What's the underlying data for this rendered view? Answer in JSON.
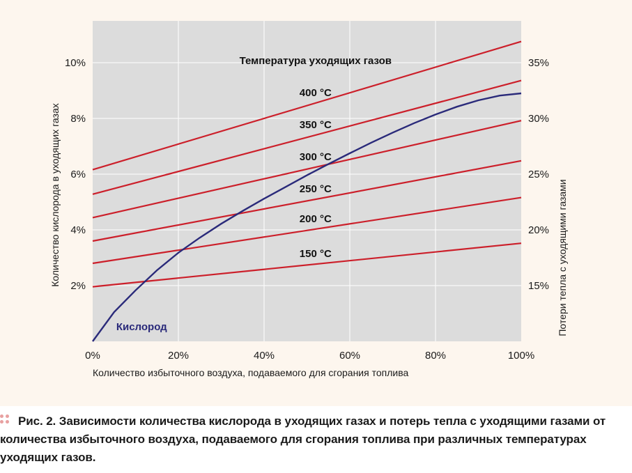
{
  "colors": {
    "plot_bg": "#dcdcdc",
    "grid": "#ffffff",
    "temperature_lines": "#cc1f2a",
    "oxygen_line": "#2a2a7a",
    "figure_bg": "#fdf6ee",
    "caption_dots": "#e8a0a0"
  },
  "chart_data": {
    "type": "line",
    "legend_title": "Температура уходящих газов",
    "xlabel": "Количество избыточного воздуха, подаваемого для сгорания топлива",
    "ylabel_left": "Количество кислорода в уходящих газах",
    "ylabel_right": "Потери тепла с уходящими газами",
    "xlim": [
      0,
      100
    ],
    "ylim_left": [
      0,
      11.5
    ],
    "ylim_right": [
      10,
      38.75
    ],
    "x_ticks": [
      "0%",
      "20%",
      "40%",
      "60%",
      "80%",
      "100%"
    ],
    "y_left_ticks": [
      "2%",
      "4%",
      "6%",
      "8%",
      "10%"
    ],
    "y_right_ticks": [
      "15%",
      "20%",
      "25%",
      "30%",
      "35%"
    ],
    "grid": true,
    "temperature_series": [
      {
        "name": "150 °C",
        "axis": "right",
        "x": [
          0,
          100
        ],
        "values": [
          14.9,
          18.8
        ]
      },
      {
        "name": "200 °C",
        "axis": "right",
        "x": [
          0,
          100
        ],
        "values": [
          17.0,
          22.9
        ]
      },
      {
        "name": "250 °C",
        "axis": "right",
        "x": [
          0,
          100
        ],
        "values": [
          19.0,
          26.2
        ]
      },
      {
        "name": "300 °C",
        "axis": "right",
        "x": [
          0,
          100
        ],
        "values": [
          21.1,
          29.8
        ]
      },
      {
        "name": "350 °C",
        "axis": "right",
        "x": [
          0,
          100
        ],
        "values": [
          23.2,
          33.4
        ]
      },
      {
        "name": "400 °C",
        "axis": "right",
        "x": [
          0,
          100
        ],
        "values": [
          25.4,
          36.9
        ]
      }
    ],
    "oxygen_series": {
      "name": "Кислород",
      "axis": "left",
      "x": [
        0,
        5,
        10,
        15,
        20,
        25,
        30,
        35,
        40,
        45,
        50,
        55,
        60,
        65,
        70,
        75,
        80,
        85,
        90,
        95,
        100
      ],
      "values": [
        0,
        1.05,
        1.83,
        2.55,
        3.18,
        3.72,
        4.22,
        4.68,
        5.12,
        5.54,
        5.96,
        6.36,
        6.75,
        7.13,
        7.49,
        7.83,
        8.14,
        8.42,
        8.65,
        8.82,
        8.9
      ]
    }
  },
  "caption": {
    "text": "Рис. 2. Зависимости количества кислорода в уходящих газах и потерь тепла с уходящими газами от количества избыточного воздуха, подаваемого для сгорания топлива при различных температурах уходящих газов."
  }
}
